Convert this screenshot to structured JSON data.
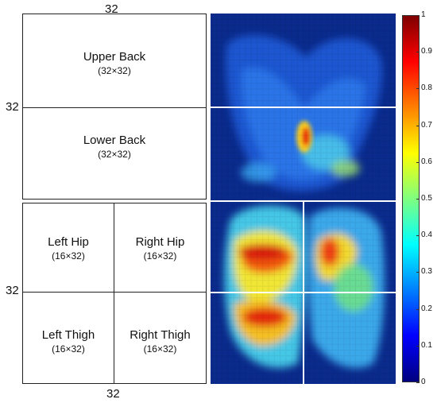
{
  "dims": {
    "top": "32",
    "left_upper": "32",
    "left_lower": "32",
    "bottom": "32"
  },
  "regions": {
    "upper_back": {
      "name": "Upper Back",
      "size": "(32×32)"
    },
    "lower_back": {
      "name": "Lower Back",
      "size": "(32×32)"
    },
    "left_hip": {
      "name": "Left Hip",
      "size": "(16×32)"
    },
    "right_hip": {
      "name": "Right Hip",
      "size": "(16×32)"
    },
    "left_thigh": {
      "name": "Left Thigh",
      "size": "(16×32)"
    },
    "right_thigh": {
      "name": "Right Thigh",
      "size": "(16×32)"
    }
  },
  "colorbar": {
    "ticks": [
      "0",
      "0.1",
      "0.2",
      "0.3",
      "0.4",
      "0.5",
      "0.6",
      "0.7",
      "0.8",
      "0.9",
      "1"
    ],
    "range": [
      0,
      1
    ],
    "colormap": [
      "#00007f",
      "#0000ff",
      "#007fff",
      "#00ffff",
      "#7fff7f",
      "#ffff00",
      "#ff7f00",
      "#ff0000",
      "#7f0000"
    ]
  },
  "heatmap": {
    "grid_cols": 32,
    "grid_rows": 64,
    "background": "#0a2a8c"
  }
}
